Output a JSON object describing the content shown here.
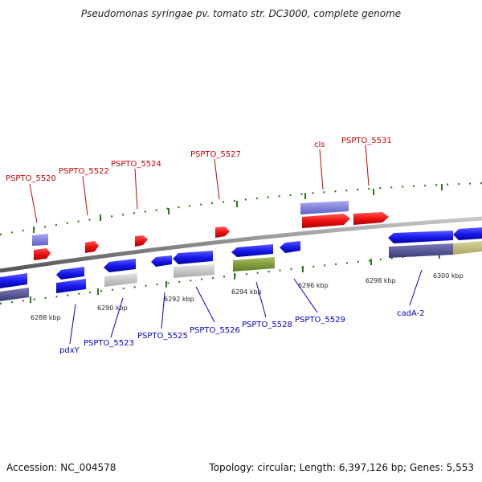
{
  "title": "Pseudomonas syringae pv. tomato str. DC3000, complete genome",
  "footer": {
    "accession": "Accession: NC_004578",
    "topology": "Topology: circular; Length: 6,397,126 bp; Genes: 5,553"
  },
  "ticks": [
    {
      "label": "6288 kbp"
    },
    {
      "label": "6290 kbp"
    },
    {
      "label": "6292 kbp"
    },
    {
      "label": "6294 kbp"
    },
    {
      "label": "6296 kbp"
    },
    {
      "label": "6298 kbp"
    },
    {
      "label": "6300 kbp"
    }
  ],
  "forward_labels": [
    "PSPTO_5520",
    "PSPTO_5522",
    "PSPTO_5524",
    "PSPTO_5527",
    "cls",
    "PSPTO_5531"
  ],
  "reverse_labels": [
    "pdxY",
    "PSPTO_5523",
    "PSPTO_5525",
    "PSPTO_5526",
    "PSPTO_5528",
    "PSPTO_5529",
    "cadA-2"
  ],
  "colors": {
    "forward_label": "#cc0000",
    "reverse_label": "#0000cc",
    "forward_gene": "#ee1111",
    "reverse_gene": "#1a1aee",
    "backbone": "#888888",
    "tick": "#2a7a1a"
  }
}
